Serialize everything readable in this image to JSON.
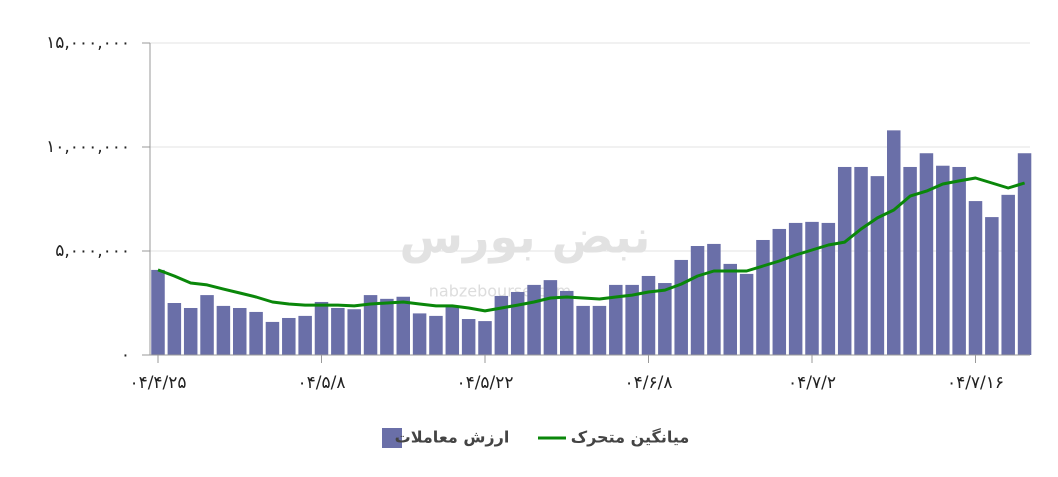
{
  "chart_data": {
    "type": "bar",
    "categories": [
      "۰۴/۴/۲۵",
      null,
      null,
      null,
      null,
      null,
      null,
      null,
      null,
      null,
      "۰۴/۵/۸",
      null,
      null,
      null,
      null,
      null,
      null,
      null,
      null,
      null,
      "۰۴/۵/۲۲",
      null,
      null,
      null,
      null,
      null,
      null,
      null,
      null,
      null,
      "۰۴/۶/۸",
      null,
      null,
      null,
      null,
      null,
      null,
      null,
      null,
      null,
      "۰۴/۷/۲",
      null,
      null,
      null,
      null,
      null,
      null,
      null,
      null,
      null,
      "۰۴/۷/۱۶",
      null,
      null,
      null
    ],
    "series": [
      {
        "name": "ارزش معاملات",
        "type": "bar",
        "color": "#6a6fa8",
        "values": [
          4090000,
          2500000,
          2260000,
          2880000,
          2360000,
          2260000,
          2070000,
          1590000,
          1780000,
          1880000,
          2550000,
          2260000,
          2200000,
          2880000,
          2700000,
          2800000,
          2000000,
          1880000,
          2360000,
          1730000,
          1630000,
          2840000,
          3030000,
          3370000,
          3600000,
          3080000,
          2360000,
          2360000,
          3370000,
          3370000,
          3800000,
          3460000,
          4570000,
          5240000,
          5340000,
          4380000,
          3900000,
          5530000,
          6060000,
          6350000,
          6400000,
          6350000,
          9040000,
          9040000,
          8600000,
          10800000,
          9040000,
          9700000,
          9100000,
          9040000,
          7400000,
          6630000,
          7700000,
          9700000
        ]
      },
      {
        "name": "میانگین متحرک",
        "type": "line",
        "color": "#0a870a",
        "values": [
          4090000,
          3800000,
          3460000,
          3370000,
          3170000,
          2980000,
          2790000,
          2550000,
          2450000,
          2400000,
          2400000,
          2400000,
          2360000,
          2450000,
          2500000,
          2550000,
          2450000,
          2360000,
          2360000,
          2260000,
          2120000,
          2260000,
          2400000,
          2550000,
          2740000,
          2790000,
          2740000,
          2690000,
          2790000,
          2880000,
          3030000,
          3120000,
          3410000,
          3800000,
          4040000,
          4040000,
          4040000,
          4280000,
          4520000,
          4810000,
          5050000,
          5290000,
          5430000,
          6060000,
          6590000,
          6970000,
          7640000,
          7880000,
          8220000,
          8370000,
          8510000,
          8270000,
          8030000,
          8270000
        ]
      }
    ],
    "ylim": [
      0,
      15000000
    ],
    "yticks": [
      {
        "value": 0,
        "label": "۰"
      },
      {
        "value": 5000000,
        "label": "۵,۰۰۰,۰۰۰"
      },
      {
        "value": 10000000,
        "label": "۱۰,۰۰۰,۰۰۰"
      },
      {
        "value": 15000000,
        "label": "۱۵,۰۰۰,۰۰۰"
      }
    ],
    "grid": true,
    "watermark": [
      "نبض بورس",
      "nabzebourse.com"
    ]
  }
}
